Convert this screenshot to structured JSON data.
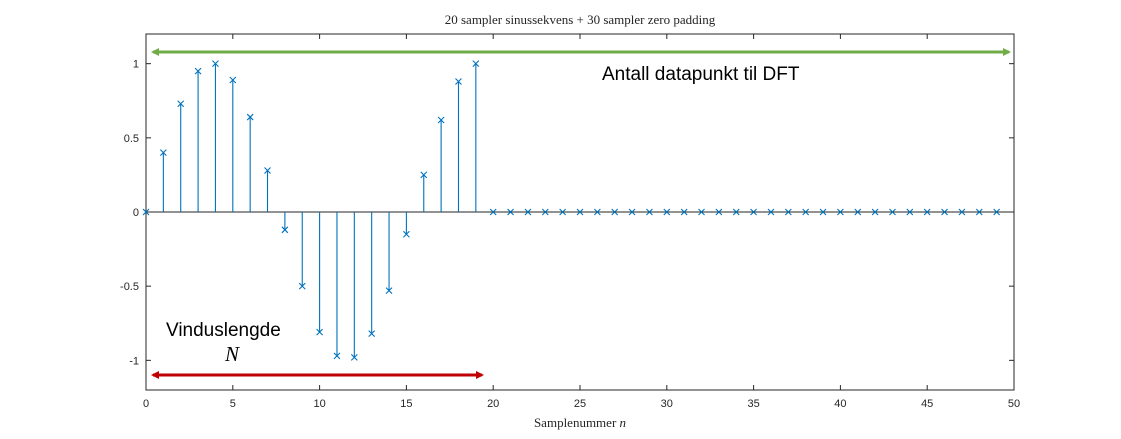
{
  "chart_data": {
    "type": "stem",
    "title": "20 sampler sinussekvens + 30 sampler zero padding",
    "xlabel": "Samplenummer",
    "xlabel_var": "n",
    "ylabel": "",
    "xlim": [
      0,
      50
    ],
    "ylim": [
      -1.2,
      1.2
    ],
    "xticks": [
      0,
      5,
      10,
      15,
      20,
      25,
      30,
      35,
      40,
      45,
      50
    ],
    "yticks": [
      -1,
      -0.5,
      0,
      0.5,
      1
    ],
    "grid": false,
    "x": [
      0,
      1,
      2,
      3,
      4,
      5,
      6,
      7,
      8,
      9,
      10,
      11,
      12,
      13,
      14,
      15,
      16,
      17,
      18,
      19,
      20,
      21,
      22,
      23,
      24,
      25,
      26,
      27,
      28,
      29,
      30,
      31,
      32,
      33,
      34,
      35,
      36,
      37,
      38,
      39,
      40,
      41,
      42,
      43,
      44,
      45,
      46,
      47,
      48,
      49
    ],
    "values": [
      0,
      0.4,
      0.73,
      0.95,
      1.0,
      0.89,
      0.64,
      0.28,
      -0.12,
      -0.5,
      -0.81,
      -0.97,
      -0.98,
      -0.82,
      -0.53,
      -0.15,
      0.25,
      0.62,
      0.88,
      1.0,
      0,
      0,
      0,
      0,
      0,
      0,
      0,
      0,
      0,
      0,
      0,
      0,
      0,
      0,
      0,
      0,
      0,
      0,
      0,
      0,
      0,
      0,
      0,
      0,
      0,
      0,
      0,
      0,
      0,
      0
    ],
    "marker": "x",
    "color": "#0072bd"
  },
  "annotations": {
    "dft_label": "Antall datapunkt til DFT",
    "dft_arrow_color": "#70ad47",
    "dft_range": [
      0,
      50
    ],
    "window_label": "Vinduslengde",
    "window_symbol": "N",
    "window_arrow_color": "#c00000",
    "window_range": [
      0,
      20
    ]
  }
}
